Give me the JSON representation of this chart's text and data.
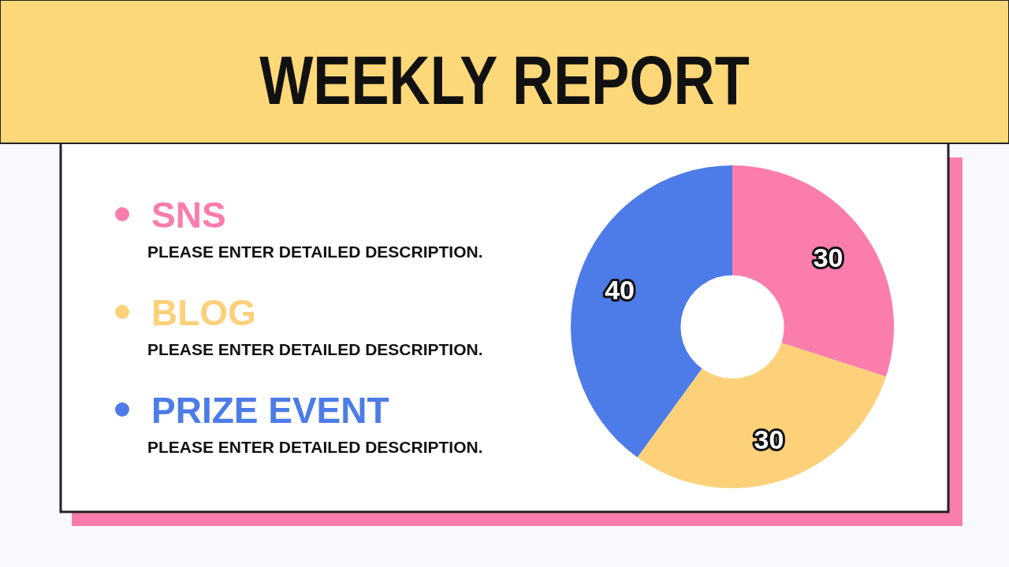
{
  "chart_data": {
    "type": "donut",
    "title": "WEEKLY REPORT",
    "categories": [
      "SNS",
      "BLOG",
      "PRIZE EVENT"
    ],
    "values": [
      30,
      30,
      40
    ],
    "colors": [
      "#fb7dab",
      "#fdd17a",
      "#4d7be8"
    ],
    "data_labels": true,
    "legend": "left",
    "annotations": [
      "PLEASE ENTER DETAILED DESCRIPTION.",
      "PLEASE ENTER DETAILED DESCRIPTION.",
      "PLEASE ENTER DETAILED DESCRIPTION."
    ]
  }
}
